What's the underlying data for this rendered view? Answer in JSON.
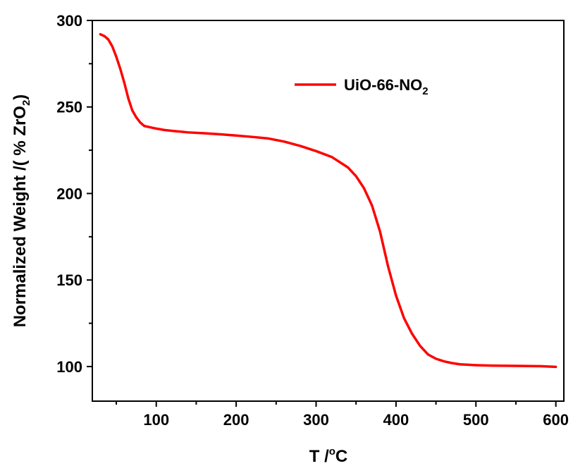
{
  "chart_data": {
    "type": "line",
    "xlabel": {
      "prefix": "T /",
      "sup": "o",
      "suffix": "C"
    },
    "ylabel": {
      "text": "Normalized Weight /( % ZrO",
      "sub": "2",
      "close": ")"
    },
    "xlim": [
      20,
      610
    ],
    "ylim": [
      80,
      300
    ],
    "x_ticks": [
      100,
      200,
      300,
      400,
      500,
      600
    ],
    "y_ticks": [
      100,
      150,
      200,
      250,
      300
    ],
    "x_tick_labels": [
      "100",
      "200",
      "300",
      "400",
      "500",
      "600"
    ],
    "y_tick_labels": [
      "100",
      "150",
      "200",
      "250",
      "300"
    ],
    "legend": {
      "position": "top-center",
      "entries": [
        {
          "text": "UiO-66-NO",
          "sub": "2"
        }
      ]
    },
    "grid": false,
    "colors": {
      "series": "#ff0000",
      "axes": "#000000"
    },
    "series": [
      {
        "name": "UiO-66-NO2",
        "x": [
          30,
          35,
          40,
          45,
          50,
          55,
          60,
          65,
          70,
          75,
          80,
          85,
          90,
          100,
          110,
          120,
          140,
          160,
          180,
          200,
          220,
          240,
          260,
          280,
          300,
          320,
          340,
          350,
          360,
          370,
          380,
          390,
          400,
          410,
          420,
          430,
          440,
          450,
          460,
          470,
          480,
          500,
          520,
          540,
          560,
          580,
          600
        ],
        "y": [
          292,
          291,
          289,
          285,
          279,
          272,
          264,
          255,
          248,
          244,
          241,
          239,
          238.5,
          237.5,
          236.7,
          236.2,
          235.3,
          234.8,
          234.2,
          233.5,
          232.7,
          231.8,
          230,
          227.5,
          224.5,
          221,
          215,
          210,
          203,
          193,
          178,
          158,
          141,
          128,
          119,
          112,
          107,
          104.5,
          103,
          102,
          101.3,
          100.8,
          100.5,
          100.4,
          100.3,
          100.2,
          99.8
        ]
      }
    ]
  }
}
